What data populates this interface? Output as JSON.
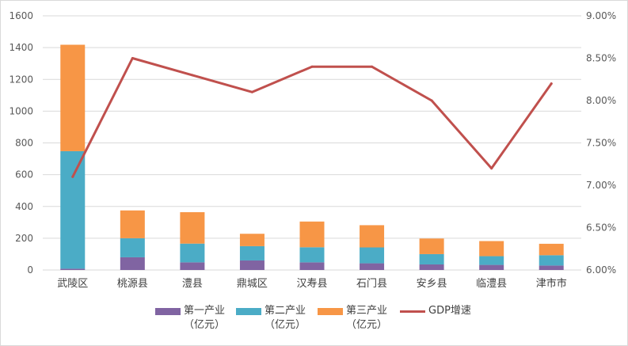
{
  "chart_data": {
    "type": "bar",
    "stacked": true,
    "categories": [
      "武陵区",
      "桃源县",
      "澧县",
      "鼎城区",
      "汉寿县",
      "石门县",
      "安乡县",
      "临澧县",
      "津市市"
    ],
    "series": [
      {
        "name": "第一产业\n（亿元）",
        "type": "bar",
        "axis": "left",
        "color": "#8064a2",
        "values": [
          8,
          80,
          48,
          60,
          48,
          42,
          35,
          32,
          28
        ]
      },
      {
        "name": "第二产业\n（亿元）",
        "type": "bar",
        "axis": "left",
        "color": "#4bacc6",
        "values": [
          740,
          120,
          118,
          90,
          95,
          100,
          65,
          55,
          65
        ]
      },
      {
        "name": "第三产业\n（亿元）",
        "type": "bar",
        "axis": "left",
        "color": "#f79646",
        "values": [
          670,
          175,
          198,
          78,
          162,
          140,
          98,
          95,
          72
        ]
      },
      {
        "name": "GDP增速",
        "type": "line",
        "axis": "right",
        "color": "#c0504d",
        "values": [
          0.071,
          0.085,
          0.083,
          0.081,
          0.084,
          0.084,
          0.08,
          0.072,
          0.082
        ]
      }
    ],
    "ylim_left": [
      0,
      1600
    ],
    "yticks_left": [
      0,
      200,
      400,
      600,
      800,
      1000,
      1200,
      1400,
      1600
    ],
    "ylim_right": [
      0.06,
      0.09
    ],
    "yticks_right": [
      "6.00%",
      "6.50%",
      "7.00%",
      "7.50%",
      "8.00%",
      "8.50%",
      "9.00%"
    ],
    "grid": true,
    "legend_position": "bottom"
  }
}
